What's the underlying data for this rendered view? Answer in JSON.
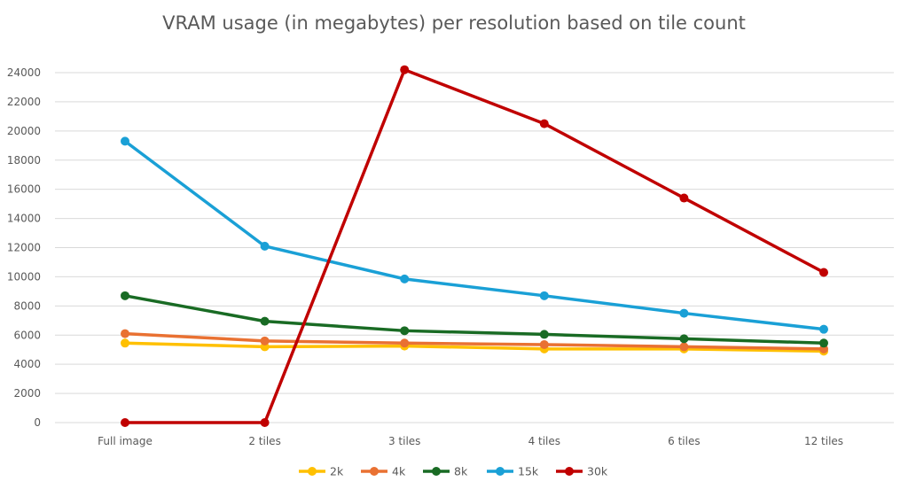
{
  "chart_data": {
    "type": "line",
    "title": "VRAM usage (in megabytes) per resolution based on tile count",
    "xlabel": "",
    "ylabel": "",
    "categories": [
      "Full image",
      "2 tiles",
      "3 tiles",
      "4 tiles",
      "6 tiles",
      "12 tiles"
    ],
    "ylim": [
      0,
      24000
    ],
    "yticks": [
      0,
      2000,
      4000,
      6000,
      8000,
      10000,
      12000,
      14000,
      16000,
      18000,
      20000,
      22000,
      24000
    ],
    "grid": true,
    "legend_position": "bottom",
    "series": [
      {
        "name": "2k",
        "color": "#FFC000",
        "values": [
          5450,
          5200,
          5250,
          5050,
          5050,
          4900
        ]
      },
      {
        "name": "4k",
        "color": "#E97132",
        "values": [
          6100,
          5600,
          5450,
          5350,
          5200,
          5050
        ]
      },
      {
        "name": "8k",
        "color": "#196B24",
        "values": [
          8700,
          6950,
          6300,
          6050,
          5750,
          5450
        ]
      },
      {
        "name": "15k",
        "color": "#1AA0D6",
        "values": [
          19300,
          12100,
          9850,
          8700,
          7500,
          6400
        ]
      },
      {
        "name": "30k",
        "color": "#C00000",
        "values": [
          0,
          0,
          24200,
          20500,
          15400,
          10300
        ]
      }
    ]
  }
}
